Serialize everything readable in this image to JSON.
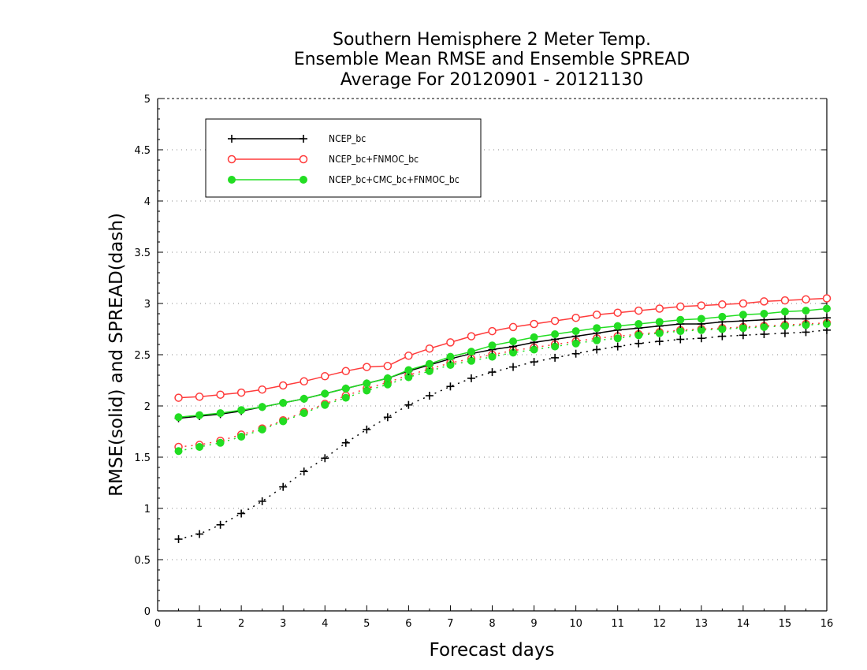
{
  "chart_data": {
    "type": "line",
    "title": [
      "Southern Hemisphere 2 Meter Temp.",
      "Ensemble Mean RMSE and Ensemble SPREAD",
      "Average For 20120901 - 20121130"
    ],
    "xlabel": "Forecast days",
    "ylabel": "RMSE(solid) and SPREAD(dash)",
    "xlim": [
      0,
      16
    ],
    "ylim": [
      0,
      5
    ],
    "xticks": [
      "0",
      "1",
      "2",
      "3",
      "4",
      "5",
      "6",
      "7",
      "8",
      "9",
      "10",
      "11",
      "12",
      "13",
      "14",
      "15",
      "16"
    ],
    "yticks": [
      "0",
      "0.5",
      "1",
      "1.5",
      "2",
      "2.5",
      "3",
      "3.5",
      "4",
      "4.5",
      "5"
    ],
    "grid": "horizontal-dotted",
    "legend_position": "top-left",
    "x": [
      0.5,
      1,
      1.5,
      2,
      2.5,
      3,
      3.5,
      4,
      4.5,
      5,
      5.5,
      6,
      6.5,
      7,
      7.5,
      8,
      8.5,
      9,
      9.5,
      10,
      10.5,
      11,
      11.5,
      12,
      12.5,
      13,
      13.5,
      14,
      14.5,
      15,
      15.5,
      16
    ],
    "series": [
      {
        "name": "NCEP_bc",
        "color": "#000000",
        "marker": "plus",
        "rmse": [
          1.88,
          1.9,
          1.92,
          1.95,
          1.99,
          2.03,
          2.07,
          2.12,
          2.17,
          2.22,
          2.27,
          2.34,
          2.4,
          2.46,
          2.51,
          2.55,
          2.58,
          2.62,
          2.65,
          2.68,
          2.71,
          2.74,
          2.76,
          2.78,
          2.8,
          2.8,
          2.82,
          2.83,
          2.84,
          2.85,
          2.85,
          2.86
        ],
        "spread": [
          0.7,
          0.75,
          0.84,
          0.95,
          1.07,
          1.21,
          1.36,
          1.49,
          1.64,
          1.77,
          1.89,
          2.01,
          2.1,
          2.19,
          2.27,
          2.33,
          2.38,
          2.43,
          2.47,
          2.51,
          2.55,
          2.58,
          2.61,
          2.63,
          2.65,
          2.66,
          2.68,
          2.69,
          2.7,
          2.71,
          2.72,
          2.74
        ]
      },
      {
        "name": "NCEP_bc+FNMOC_bc",
        "color": "#ff3b3b",
        "marker": "open-circle",
        "rmse": [
          2.08,
          2.09,
          2.11,
          2.13,
          2.16,
          2.2,
          2.24,
          2.29,
          2.34,
          2.38,
          2.39,
          2.49,
          2.56,
          2.62,
          2.68,
          2.73,
          2.77,
          2.8,
          2.83,
          2.86,
          2.89,
          2.91,
          2.93,
          2.95,
          2.97,
          2.98,
          2.99,
          3.0,
          3.02,
          3.03,
          3.04,
          3.05
        ],
        "spread": [
          1.6,
          1.62,
          1.66,
          1.72,
          1.78,
          1.86,
          1.94,
          2.02,
          2.1,
          2.17,
          2.23,
          2.3,
          2.36,
          2.42,
          2.46,
          2.5,
          2.54,
          2.57,
          2.6,
          2.63,
          2.66,
          2.68,
          2.7,
          2.72,
          2.74,
          2.75,
          2.76,
          2.77,
          2.78,
          2.79,
          2.8,
          2.81
        ]
      },
      {
        "name": "NCEP_bc+CMC_bc+FNMOC_bc",
        "color": "#22dd22",
        "marker": "filled-circle",
        "rmse": [
          1.89,
          1.91,
          1.93,
          1.96,
          1.99,
          2.03,
          2.07,
          2.12,
          2.17,
          2.22,
          2.27,
          2.35,
          2.41,
          2.48,
          2.53,
          2.59,
          2.63,
          2.67,
          2.7,
          2.73,
          2.76,
          2.78,
          2.8,
          2.82,
          2.84,
          2.85,
          2.87,
          2.89,
          2.9,
          2.92,
          2.93,
          2.95
        ],
        "spread": [
          1.56,
          1.6,
          1.64,
          1.7,
          1.77,
          1.85,
          1.93,
          2.01,
          2.08,
          2.15,
          2.21,
          2.28,
          2.34,
          2.4,
          2.44,
          2.48,
          2.52,
          2.55,
          2.58,
          2.61,
          2.64,
          2.66,
          2.69,
          2.71,
          2.73,
          2.74,
          2.75,
          2.76,
          2.77,
          2.78,
          2.79,
          2.8
        ]
      }
    ]
  }
}
